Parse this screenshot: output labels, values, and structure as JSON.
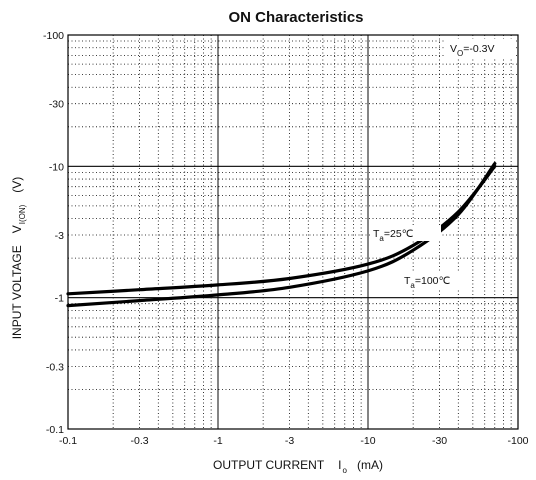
{
  "chart_data": {
    "type": "line",
    "title": "ON Characteristics",
    "xlabel": {
      "main": "OUTPUT CURRENT",
      "symbol": "I",
      "subscript": "o",
      "unit": "(mA)"
    },
    "ylabel": {
      "main": "INPUT VOLTAGE",
      "symbol": "V",
      "subscript": "I(ON)",
      "unit": "(V)"
    },
    "x_scale": "log",
    "y_scale": "log",
    "x_axis_sign": "negative",
    "y_axis_sign": "negative",
    "xlim": [
      -0.1,
      -100
    ],
    "ylim": [
      -0.1,
      -100
    ],
    "x_ticks": [
      -0.1,
      -0.3,
      -1,
      -3,
      -10,
      -30,
      -100
    ],
    "x_tick_labels": [
      "-0.1",
      "-0.3",
      "-1",
      "-3",
      "-10",
      "-30",
      "-100"
    ],
    "y_ticks": [
      -100,
      -30,
      -10,
      -3,
      -1,
      -0.3,
      -0.1
    ],
    "y_tick_labels": [
      "-100",
      "-30",
      "-10",
      "-3",
      "-1",
      "-0.3",
      "-0.1"
    ],
    "grid": true,
    "condition": {
      "symbol": "V",
      "subscript": "O",
      "value": "=-0.3V"
    },
    "series": [
      {
        "name": "Ta=25℃",
        "label": {
          "symbol": "T",
          "subscript": "a",
          "value": "=25℃"
        },
        "x": [
          -0.1,
          -0.3,
          -1,
          -3,
          -10,
          -20,
          -40,
          -70
        ],
        "y": [
          -1.07,
          -1.15,
          -1.25,
          -1.4,
          -1.8,
          -2.5,
          -4.5,
          -10
        ]
      },
      {
        "name": "Ta=100℃",
        "label": {
          "symbol": "T",
          "subscript": "a",
          "value": "=100℃"
        },
        "x": [
          -0.1,
          -0.3,
          -1,
          -3,
          -10,
          -20,
          -40,
          -70
        ],
        "y": [
          -0.87,
          -0.95,
          -1.05,
          -1.2,
          -1.6,
          -2.3,
          -4.3,
          -10.5
        ]
      }
    ]
  }
}
